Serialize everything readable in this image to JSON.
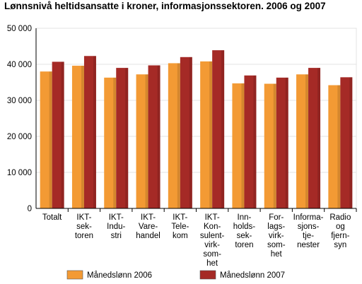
{
  "chart_data": {
    "type": "bar",
    "title": "Lønnsnivå heltidsansatte i kroner, informasjonssektoren. 2006 og 2007",
    "xlabel": "",
    "ylabel": "",
    "ylim": [
      0,
      50000
    ],
    "yticks": [
      0,
      10000,
      20000,
      30000,
      40000,
      50000
    ],
    "ytick_labels": [
      "0",
      "10 000",
      "20 000",
      "30 000",
      "40 000",
      "50 000"
    ],
    "grid": true,
    "legend_position": "bottom",
    "categories": [
      [
        "Totalt"
      ],
      [
        "IKT-",
        "sek-",
        "toren"
      ],
      [
        "IKT-",
        "Indu-",
        "stri"
      ],
      [
        "IKT-",
        "Vare-",
        "handel"
      ],
      [
        "IKT-",
        "Tele-",
        "kom"
      ],
      [
        "IKT-",
        "Kon-",
        "sulent-",
        "virk-",
        "som-",
        "het"
      ],
      [
        "Inn-",
        "holds-",
        "sek-",
        "toren"
      ],
      [
        "For-",
        "lags-",
        "virk-",
        "som-",
        "het"
      ],
      [
        "Informa-",
        "sjons-",
        "tje-",
        "nester"
      ],
      [
        "Radio",
        "og",
        "fjern-",
        "syn"
      ]
    ],
    "series": [
      {
        "name": "Månedslønn 2006",
        "color": "#f39a34",
        "values": [
          38000,
          39600,
          36300,
          37200,
          40300,
          40800,
          34700,
          34600,
          37200,
          34200
        ]
      },
      {
        "name": "Månedslønn 2007",
        "color": "#a52a26",
        "values": [
          40700,
          42300,
          39000,
          39700,
          42000,
          43900,
          36900,
          36300,
          39000,
          36400
        ]
      }
    ]
  }
}
